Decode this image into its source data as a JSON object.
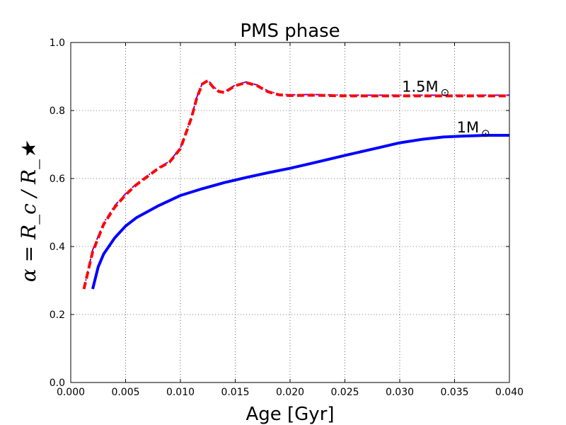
{
  "chart_data": {
    "type": "line",
    "title": "PMS phase",
    "xlabel": "Age [Gyr]",
    "ylabel": "α = R_c / R_★",
    "xlim": [
      0.0,
      0.04
    ],
    "ylim": [
      0.0,
      1.0
    ],
    "grid": true,
    "x_ticks": [
      "0.000",
      "0.005",
      "0.010",
      "0.015",
      "0.020",
      "0.025",
      "0.030",
      "0.035",
      "0.040"
    ],
    "y_ticks": [
      "0.0",
      "0.2",
      "0.4",
      "0.6",
      "0.8",
      "1.0"
    ],
    "series": [
      {
        "color": "#0000ff",
        "style": "solid",
        "x": [
          0.002,
          0.0025,
          0.003,
          0.004,
          0.005,
          0.006,
          0.008,
          0.01,
          0.012,
          0.014,
          0.016,
          0.018,
          0.02,
          0.022,
          0.025,
          0.028,
          0.03,
          0.032,
          0.034,
          0.036,
          0.038,
          0.04
        ],
        "y": [
          0.275,
          0.34,
          0.378,
          0.425,
          0.46,
          0.485,
          0.52,
          0.55,
          0.57,
          0.588,
          0.603,
          0.617,
          0.63,
          0.645,
          0.668,
          0.69,
          0.705,
          0.715,
          0.722,
          0.725,
          0.727,
          0.727
        ]
      },
      {
        "color": "#7a00d0",
        "style": "dash-dot",
        "x": [
          0.0012,
          0.002,
          0.003,
          0.004,
          0.005,
          0.006,
          0.008,
          0.009,
          0.01,
          0.011,
          0.0115,
          0.012,
          0.0125,
          0.013,
          0.0135,
          0.014,
          0.015,
          0.016,
          0.017,
          0.018,
          0.019,
          0.02,
          0.022,
          0.025,
          0.03,
          0.035,
          0.04
        ],
        "y": [
          0.275,
          0.39,
          0.47,
          0.52,
          0.555,
          0.585,
          0.632,
          0.65,
          0.69,
          0.78,
          0.84,
          0.88,
          0.89,
          0.87,
          0.858,
          0.855,
          0.875,
          0.884,
          0.875,
          0.857,
          0.848,
          0.846,
          0.847,
          0.845,
          0.845,
          0.845,
          0.845
        ]
      },
      {
        "color": "#ff0000",
        "style": "dashed",
        "x": [
          0.0012,
          0.002,
          0.003,
          0.004,
          0.005,
          0.006,
          0.008,
          0.009,
          0.01,
          0.011,
          0.0115,
          0.012,
          0.0125,
          0.013,
          0.0135,
          0.014,
          0.015,
          0.016,
          0.017,
          0.018,
          0.019,
          0.02,
          0.022,
          0.025,
          0.03,
          0.035,
          0.04
        ],
        "y": [
          0.275,
          0.385,
          0.465,
          0.515,
          0.552,
          0.582,
          0.63,
          0.648,
          0.688,
          0.778,
          0.838,
          0.878,
          0.888,
          0.868,
          0.856,
          0.853,
          0.873,
          0.882,
          0.873,
          0.855,
          0.846,
          0.844,
          0.845,
          0.843,
          0.843,
          0.843,
          0.843
        ]
      }
    ],
    "annotations": [
      {
        "text": "1.5M",
        "symbol": "⊙",
        "x": 0.0302,
        "y": 0.87
      },
      {
        "text": "1M",
        "symbol": "⊙",
        "x": 0.0352,
        "y": 0.75
      }
    ]
  }
}
